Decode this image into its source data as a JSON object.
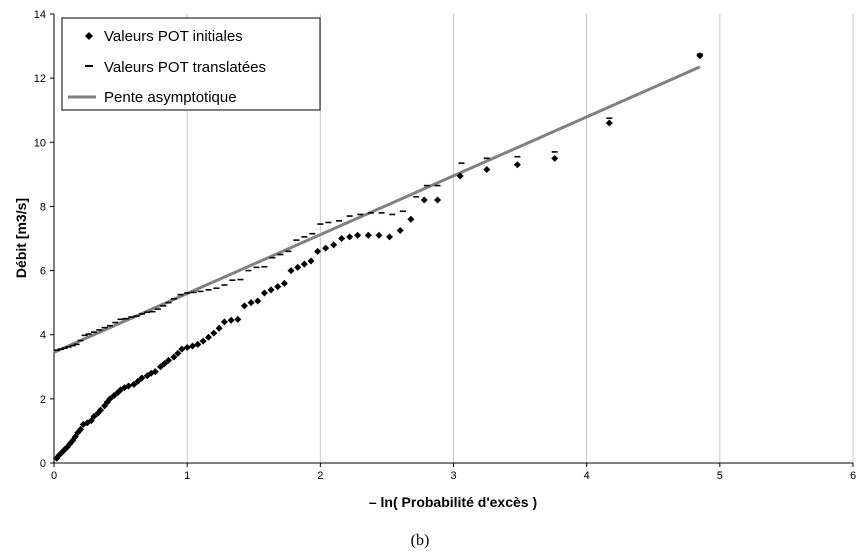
{
  "chart_data": {
    "type": "scatter",
    "xlabel": "– ln( Probabilité d'excès )",
    "ylabel": "Débit [m3/s]",
    "caption": "(b)",
    "xlim": [
      0,
      6
    ],
    "ylim": [
      0,
      14
    ],
    "xticks": [
      0,
      1,
      2,
      3,
      4,
      5,
      6
    ],
    "yticks": [
      0,
      2,
      4,
      6,
      8,
      10,
      12,
      14
    ],
    "grid": "vertical",
    "legend_position": "top-left",
    "series": [
      {
        "name": "Valeurs POT initiales",
        "marker": "diamond",
        "color": "#000000",
        "points": [
          [
            0.02,
            0.15
          ],
          [
            0.04,
            0.25
          ],
          [
            0.06,
            0.33
          ],
          [
            0.08,
            0.42
          ],
          [
            0.1,
            0.5
          ],
          [
            0.12,
            0.6
          ],
          [
            0.14,
            0.7
          ],
          [
            0.16,
            0.82
          ],
          [
            0.18,
            0.95
          ],
          [
            0.2,
            1.05
          ],
          [
            0.22,
            1.2
          ],
          [
            0.25,
            1.25
          ],
          [
            0.28,
            1.32
          ],
          [
            0.3,
            1.45
          ],
          [
            0.33,
            1.55
          ],
          [
            0.35,
            1.65
          ],
          [
            0.38,
            1.78
          ],
          [
            0.4,
            1.9
          ],
          [
            0.42,
            2.0
          ],
          [
            0.45,
            2.1
          ],
          [
            0.48,
            2.2
          ],
          [
            0.5,
            2.28
          ],
          [
            0.53,
            2.35
          ],
          [
            0.56,
            2.4
          ],
          [
            0.6,
            2.45
          ],
          [
            0.63,
            2.55
          ],
          [
            0.66,
            2.65
          ],
          [
            0.7,
            2.72
          ],
          [
            0.73,
            2.8
          ],
          [
            0.76,
            2.85
          ],
          [
            0.8,
            3.0
          ],
          [
            0.83,
            3.1
          ],
          [
            0.86,
            3.2
          ],
          [
            0.9,
            3.3
          ],
          [
            0.93,
            3.42
          ],
          [
            0.96,
            3.55
          ],
          [
            1.0,
            3.6
          ],
          [
            1.04,
            3.65
          ],
          [
            1.08,
            3.7
          ],
          [
            1.12,
            3.8
          ],
          [
            1.16,
            3.92
          ],
          [
            1.2,
            4.05
          ],
          [
            1.24,
            4.2
          ],
          [
            1.28,
            4.4
          ],
          [
            1.33,
            4.45
          ],
          [
            1.38,
            4.48
          ],
          [
            1.43,
            4.9
          ],
          [
            1.48,
            5.0
          ],
          [
            1.53,
            5.05
          ],
          [
            1.58,
            5.3
          ],
          [
            1.63,
            5.4
          ],
          [
            1.68,
            5.5
          ],
          [
            1.73,
            5.6
          ],
          [
            1.78,
            6.0
          ],
          [
            1.83,
            6.1
          ],
          [
            1.88,
            6.2
          ],
          [
            1.93,
            6.3
          ],
          [
            1.98,
            6.6
          ],
          [
            2.04,
            6.7
          ],
          [
            2.1,
            6.8
          ],
          [
            2.16,
            7.0
          ],
          [
            2.22,
            7.05
          ],
          [
            2.28,
            7.1
          ],
          [
            2.36,
            7.1
          ],
          [
            2.44,
            7.1
          ],
          [
            2.52,
            7.05
          ],
          [
            2.6,
            7.25
          ],
          [
            2.68,
            7.6
          ],
          [
            2.78,
            8.2
          ],
          [
            2.88,
            8.2
          ],
          [
            3.05,
            8.95
          ],
          [
            3.25,
            9.15
          ],
          [
            3.48,
            9.3
          ],
          [
            3.76,
            9.5
          ],
          [
            4.17,
            10.6
          ],
          [
            4.85,
            12.7
          ]
        ]
      },
      {
        "name": "Valeurs POT translatées",
        "marker": "dash",
        "color": "#000000",
        "points": [
          [
            0.02,
            3.52
          ],
          [
            0.05,
            3.55
          ],
          [
            0.08,
            3.58
          ],
          [
            0.11,
            3.62
          ],
          [
            0.14,
            3.66
          ],
          [
            0.17,
            3.7
          ],
          [
            0.2,
            3.82
          ],
          [
            0.23,
            3.98
          ],
          [
            0.26,
            4.02
          ],
          [
            0.3,
            4.08
          ],
          [
            0.34,
            4.15
          ],
          [
            0.38,
            4.22
          ],
          [
            0.42,
            4.28
          ],
          [
            0.46,
            4.38
          ],
          [
            0.5,
            4.48
          ],
          [
            0.54,
            4.5
          ],
          [
            0.58,
            4.55
          ],
          [
            0.62,
            4.58
          ],
          [
            0.66,
            4.65
          ],
          [
            0.7,
            4.7
          ],
          [
            0.74,
            4.72
          ],
          [
            0.78,
            4.8
          ],
          [
            0.82,
            4.9
          ],
          [
            0.86,
            5.0
          ],
          [
            0.9,
            5.12
          ],
          [
            0.95,
            5.25
          ],
          [
            1.0,
            5.3
          ],
          [
            1.05,
            5.32
          ],
          [
            1.1,
            5.35
          ],
          [
            1.16,
            5.4
          ],
          [
            1.22,
            5.45
          ],
          [
            1.28,
            5.55
          ],
          [
            1.34,
            5.7
          ],
          [
            1.4,
            5.72
          ],
          [
            1.46,
            6.0
          ],
          [
            1.52,
            6.1
          ],
          [
            1.58,
            6.12
          ],
          [
            1.64,
            6.4
          ],
          [
            1.7,
            6.5
          ],
          [
            1.76,
            6.6
          ],
          [
            1.82,
            6.95
          ],
          [
            1.88,
            7.05
          ],
          [
            1.94,
            7.15
          ],
          [
            2.0,
            7.45
          ],
          [
            2.06,
            7.5
          ],
          [
            2.14,
            7.55
          ],
          [
            2.22,
            7.7
          ],
          [
            2.3,
            7.75
          ],
          [
            2.38,
            7.8
          ],
          [
            2.46,
            7.8
          ],
          [
            2.54,
            7.75
          ],
          [
            2.62,
            7.85
          ],
          [
            2.72,
            8.3
          ],
          [
            2.8,
            8.65
          ],
          [
            2.88,
            8.65
          ],
          [
            3.06,
            9.35
          ],
          [
            3.25,
            9.5
          ],
          [
            3.48,
            9.55
          ],
          [
            3.76,
            9.7
          ],
          [
            4.17,
            10.75
          ],
          [
            4.85,
            12.75
          ]
        ]
      },
      {
        "name": "Pente asymptotique",
        "marker": "line",
        "color": "#808080",
        "points": [
          [
            0,
            3.45
          ],
          [
            4.85,
            12.35
          ]
        ]
      }
    ]
  }
}
